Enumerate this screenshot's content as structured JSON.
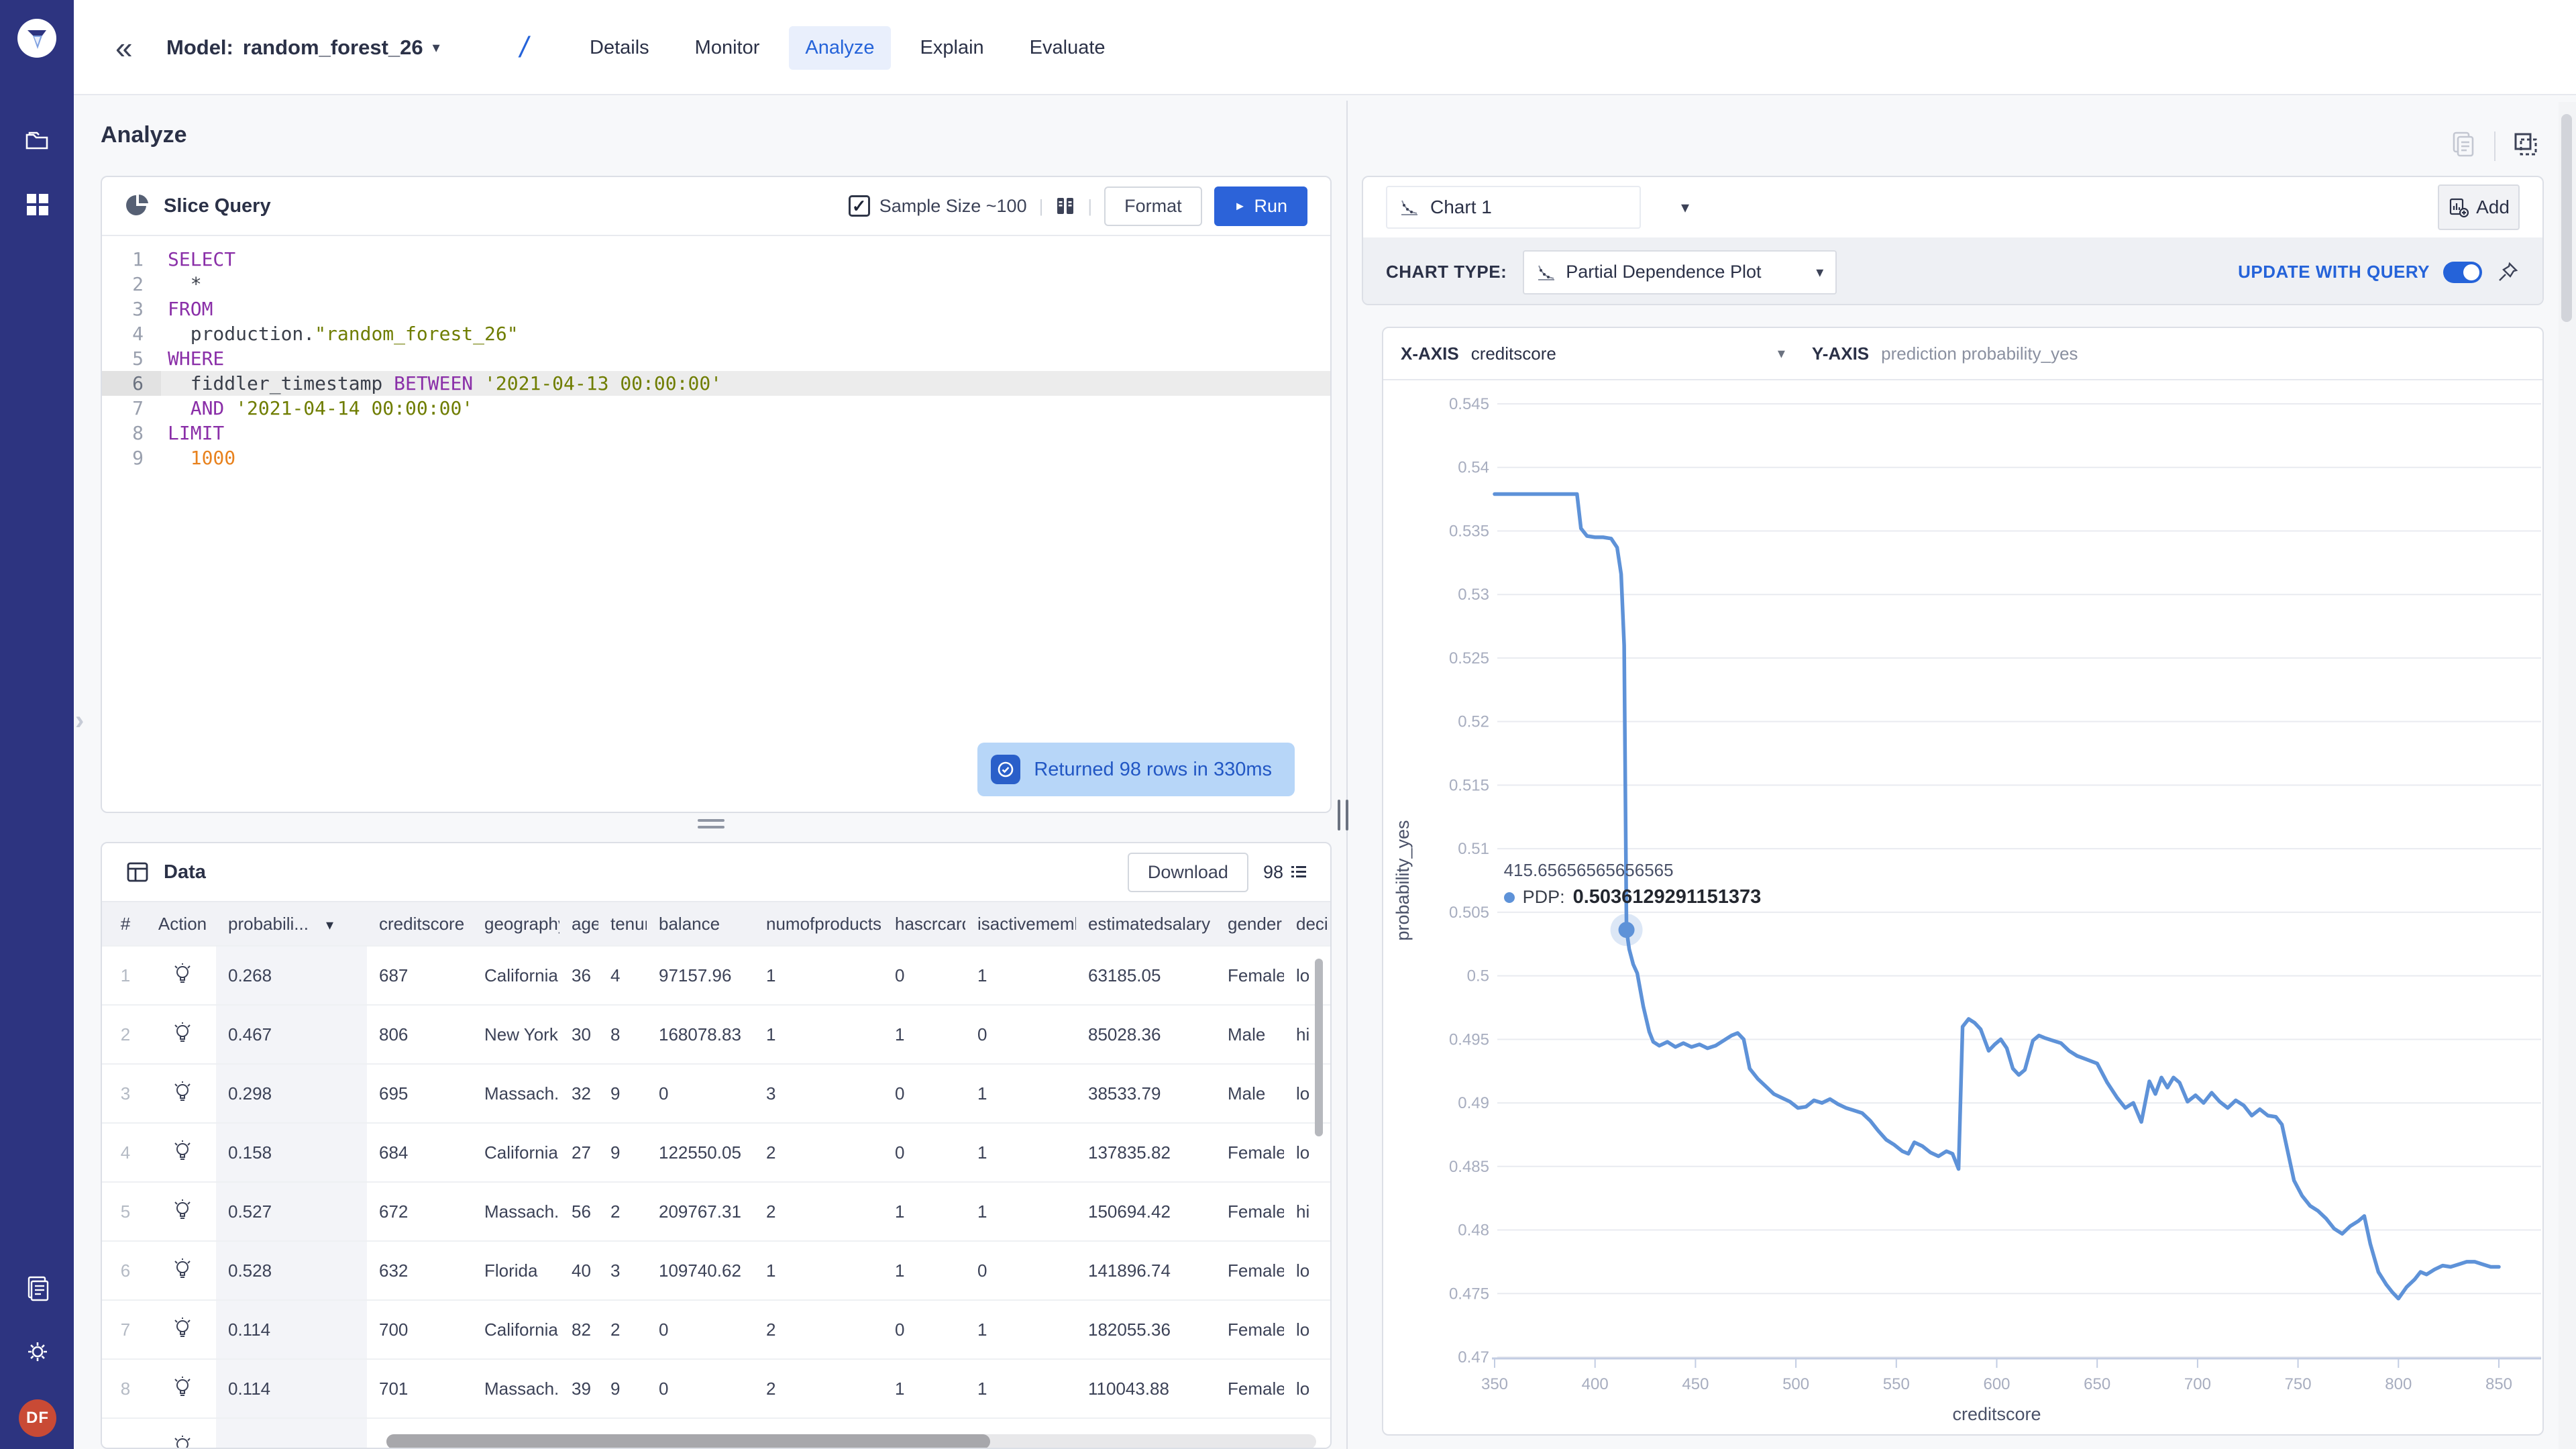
{
  "app": {
    "accent": "#2563d9",
    "sidebar_color": "#2d3480",
    "line_color": "#5e92d8",
    "toast_bg": "#b7d6f8"
  },
  "icons": {
    "chevron_down": "▾",
    "collapse": "«",
    "expander": "›",
    "check": "✓",
    "play": "►",
    "divider": "|"
  },
  "sidebar": {
    "logo": "fiddler-logo",
    "avatar_initials": "DF"
  },
  "topbar": {
    "model_label": "Model:",
    "model_name": "random_forest_26",
    "breadcrumb_slash": "/",
    "tabs": [
      {
        "label": "Details",
        "active": false
      },
      {
        "label": "Monitor",
        "active": false
      },
      {
        "label": "Analyze",
        "active": true
      },
      {
        "label": "Explain",
        "active": false
      },
      {
        "label": "Evaluate",
        "active": false
      }
    ]
  },
  "page": {
    "title": "Analyze"
  },
  "slice_query": {
    "title": "Slice Query",
    "sample_size_label": "Sample Size ~100",
    "format_label": "Format",
    "run_label": "Run",
    "code_lines": [
      {
        "active": false,
        "tokens": [
          [
            "kw",
            "SELECT"
          ]
        ]
      },
      {
        "active": false,
        "tokens": [
          [
            "pl",
            "  *"
          ]
        ]
      },
      {
        "active": false,
        "tokens": [
          [
            "kw",
            "FROM"
          ]
        ]
      },
      {
        "active": false,
        "tokens": [
          [
            "pl",
            "  production."
          ],
          [
            "str",
            "\"random_forest_26\""
          ]
        ]
      },
      {
        "active": false,
        "tokens": [
          [
            "kw",
            "WHERE"
          ]
        ]
      },
      {
        "active": true,
        "tokens": [
          [
            "pl",
            "  fiddler_timestamp "
          ],
          [
            "kw",
            "BETWEEN"
          ],
          [
            "pl",
            " "
          ],
          [
            "str",
            "'2021-04-13 00:00:00'"
          ]
        ]
      },
      {
        "active": false,
        "tokens": [
          [
            "pl",
            "  "
          ],
          [
            "kw",
            "AND"
          ],
          [
            "pl",
            " "
          ],
          [
            "str",
            "'2021-04-14 00:00:00'"
          ]
        ]
      },
      {
        "active": false,
        "tokens": [
          [
            "kw",
            "LIMIT"
          ]
        ]
      },
      {
        "active": false,
        "tokens": [
          [
            "num",
            "  1000"
          ]
        ]
      }
    ]
  },
  "toast": {
    "text": "Returned 98 rows in 330ms"
  },
  "data_panel": {
    "title": "Data",
    "download_label": "Download",
    "row_count": "98",
    "columns": [
      "#",
      "Action",
      "probabili...",
      "creditscore",
      "geography",
      "age",
      "tenure",
      "balance",
      "numofproducts",
      "hascrcard",
      "isactivemember",
      "estimatedsalary",
      "gender",
      "deci"
    ],
    "rows": [
      {
        "n": "1",
        "prob": "0.268",
        "creditscore": "687",
        "geography": "California",
        "age": "36",
        "tenure": "4",
        "balance": "97157.96",
        "numofproducts": "1",
        "hascrcard": "0",
        "isactivemember": "1",
        "estimatedsalary": "63185.05",
        "gender": "Female",
        "decision": "lo"
      },
      {
        "n": "2",
        "prob": "0.467",
        "creditscore": "806",
        "geography": "New York",
        "age": "30",
        "tenure": "8",
        "balance": "168078.83",
        "numofproducts": "1",
        "hascrcard": "1",
        "isactivemember": "0",
        "estimatedsalary": "85028.36",
        "gender": "Male",
        "decision": "hi"
      },
      {
        "n": "3",
        "prob": "0.298",
        "creditscore": "695",
        "geography": "Massach...",
        "age": "32",
        "tenure": "9",
        "balance": "0",
        "numofproducts": "3",
        "hascrcard": "0",
        "isactivemember": "1",
        "estimatedsalary": "38533.79",
        "gender": "Male",
        "decision": "lo"
      },
      {
        "n": "4",
        "prob": "0.158",
        "creditscore": "684",
        "geography": "California",
        "age": "27",
        "tenure": "9",
        "balance": "122550.05",
        "numofproducts": "2",
        "hascrcard": "0",
        "isactivemember": "1",
        "estimatedsalary": "137835.82",
        "gender": "Female",
        "decision": "lo"
      },
      {
        "n": "5",
        "prob": "0.527",
        "creditscore": "672",
        "geography": "Massach...",
        "age": "56",
        "tenure": "2",
        "balance": "209767.31",
        "numofproducts": "2",
        "hascrcard": "1",
        "isactivemember": "1",
        "estimatedsalary": "150694.42",
        "gender": "Female",
        "decision": "hi"
      },
      {
        "n": "6",
        "prob": "0.528",
        "creditscore": "632",
        "geography": "Florida",
        "age": "40",
        "tenure": "3",
        "balance": "109740.62",
        "numofproducts": "1",
        "hascrcard": "1",
        "isactivemember": "0",
        "estimatedsalary": "141896.74",
        "gender": "Female",
        "decision": "lo"
      },
      {
        "n": "7",
        "prob": "0.114",
        "creditscore": "700",
        "geography": "California",
        "age": "82",
        "tenure": "2",
        "balance": "0",
        "numofproducts": "2",
        "hascrcard": "0",
        "isactivemember": "1",
        "estimatedsalary": "182055.36",
        "gender": "Female",
        "decision": "lo"
      },
      {
        "n": "8",
        "prob": "0.114",
        "creditscore": "701",
        "geography": "Massach...",
        "age": "39",
        "tenure": "9",
        "balance": "0",
        "numofproducts": "2",
        "hascrcard": "1",
        "isactivemember": "1",
        "estimatedsalary": "110043.88",
        "gender": "Female",
        "decision": "lo"
      },
      {
        "n": "",
        "prob": "",
        "creditscore": "",
        "geography": "",
        "age": "",
        "tenure": "",
        "balance": "",
        "numofproducts": "",
        "hascrcard": "",
        "isactivemember": "",
        "estimatedsalary": "",
        "gender": "",
        "decision": ""
      }
    ]
  },
  "chart_panel": {
    "selector_label": "Chart 1",
    "add_label": "Add",
    "chart_type_label": "CHART TYPE:",
    "chart_type_value": "Partial Dependence Plot",
    "update_label": "UPDATE WITH QUERY",
    "x_axis_label": "X-AXIS",
    "x_axis_value": "creditscore",
    "y_axis_label": "Y-AXIS",
    "y_axis_value": "prediction probability_yes",
    "tooltip": {
      "x_value": "415.65656565656565",
      "series_label": "PDP:",
      "value": "0.5036129291151373"
    }
  },
  "chart_data": {
    "type": "line",
    "title": "Partial Dependence Plot",
    "xlabel": "creditscore",
    "ylabel": "probability_yes",
    "xlim": [
      350,
      850
    ],
    "ylim": [
      0.47,
      0.545
    ],
    "grid": true,
    "x_ticks": [
      "350",
      "400",
      "450",
      "500",
      "550",
      "600",
      "650",
      "700",
      "750",
      "800",
      "850"
    ],
    "y_ticks": [
      "0.545",
      "0.54",
      "0.535",
      "0.53",
      "0.525",
      "0.52",
      "0.515",
      "0.51",
      "0.505",
      "0.5",
      "0.495",
      "0.49",
      "0.485",
      "0.48",
      "0.475",
      "0.47"
    ],
    "marker": {
      "x": 415.65656565656565,
      "y": 0.5036129291151373
    },
    "series": [
      {
        "name": "PDP",
        "color": "#5e92d8",
        "points": [
          [
            350,
            0.5379
          ],
          [
            356,
            0.5379
          ],
          [
            362,
            0.5379
          ],
          [
            368,
            0.5379
          ],
          [
            374,
            0.5379
          ],
          [
            380,
            0.5379
          ],
          [
            386,
            0.5379
          ],
          [
            391,
            0.5379
          ],
          [
            393,
            0.5352
          ],
          [
            396,
            0.5346
          ],
          [
            400,
            0.5345
          ],
          [
            404,
            0.5345
          ],
          [
            408,
            0.5344
          ],
          [
            411,
            0.5337
          ],
          [
            413,
            0.5316
          ],
          [
            414.5,
            0.526
          ],
          [
            415.65656565656565,
            0.5036129291151373
          ],
          [
            417,
            0.5021
          ],
          [
            419,
            0.5009
          ],
          [
            421,
            0.5002
          ],
          [
            424,
            0.4976
          ],
          [
            427,
            0.4956
          ],
          [
            429,
            0.4948
          ],
          [
            432,
            0.4945
          ],
          [
            436,
            0.4948
          ],
          [
            440,
            0.4944
          ],
          [
            444,
            0.4947
          ],
          [
            448,
            0.4944
          ],
          [
            452,
            0.4946
          ],
          [
            456,
            0.4943
          ],
          [
            460,
            0.4945
          ],
          [
            464,
            0.4949
          ],
          [
            468,
            0.4953
          ],
          [
            471,
            0.4955
          ],
          [
            474,
            0.495
          ],
          [
            477,
            0.4927
          ],
          [
            481,
            0.4919
          ],
          [
            485,
            0.4913
          ],
          [
            489,
            0.4907
          ],
          [
            493,
            0.4904
          ],
          [
            497,
            0.4901
          ],
          [
            501,
            0.4896
          ],
          [
            505,
            0.4897
          ],
          [
            509,
            0.4902
          ],
          [
            513,
            0.49
          ],
          [
            517,
            0.4903
          ],
          [
            521,
            0.4899
          ],
          [
            525,
            0.4896
          ],
          [
            529,
            0.4894
          ],
          [
            533,
            0.4892
          ],
          [
            537,
            0.4886
          ],
          [
            541,
            0.4878
          ],
          [
            545,
            0.4871
          ],
          [
            549,
            0.4867
          ],
          [
            553,
            0.4862
          ],
          [
            556,
            0.486
          ],
          [
            559,
            0.4869
          ],
          [
            563,
            0.4866
          ],
          [
            567,
            0.4861
          ],
          [
            571,
            0.4858
          ],
          [
            575,
            0.4862
          ],
          [
            578,
            0.486
          ],
          [
            581,
            0.4848
          ],
          [
            583,
            0.496
          ],
          [
            586,
            0.4966
          ],
          [
            589,
            0.4963
          ],
          [
            592,
            0.4958
          ],
          [
            596,
            0.4941
          ],
          [
            599,
            0.4946
          ],
          [
            602,
            0.495
          ],
          [
            605,
            0.4943
          ],
          [
            608,
            0.4927
          ],
          [
            611,
            0.4922
          ],
          [
            614,
            0.4926
          ],
          [
            618,
            0.4949
          ],
          [
            621,
            0.4953
          ],
          [
            624,
            0.4951
          ],
          [
            628,
            0.4949
          ],
          [
            632,
            0.4947
          ],
          [
            636,
            0.4941
          ],
          [
            640,
            0.4937
          ],
          [
            645,
            0.4934
          ],
          [
            650,
            0.4931
          ],
          [
            655,
            0.4916
          ],
          [
            660,
            0.4904
          ],
          [
            664,
            0.4896
          ],
          [
            668,
            0.49
          ],
          [
            672,
            0.4885
          ],
          [
            676,
            0.4917
          ],
          [
            679,
            0.4907
          ],
          [
            682,
            0.492
          ],
          [
            685,
            0.4912
          ],
          [
            688,
            0.492
          ],
          [
            691,
            0.4916
          ],
          [
            695,
            0.4901
          ],
          [
            699,
            0.4906
          ],
          [
            703,
            0.49
          ],
          [
            707,
            0.4908
          ],
          [
            711,
            0.4901
          ],
          [
            715,
            0.4896
          ],
          [
            719,
            0.4902
          ],
          [
            723,
            0.4898
          ],
          [
            727,
            0.489
          ],
          [
            731,
            0.4895
          ],
          [
            735,
            0.489
          ],
          [
            739,
            0.4889
          ],
          [
            742,
            0.4883
          ],
          [
            745,
            0.4861
          ],
          [
            748,
            0.4839
          ],
          [
            752,
            0.4827
          ],
          [
            756,
            0.4819
          ],
          [
            760,
            0.4815
          ],
          [
            764,
            0.4809
          ],
          [
            768,
            0.4801
          ],
          [
            772,
            0.4797
          ],
          [
            776,
            0.4803
          ],
          [
            780,
            0.4807
          ],
          [
            783,
            0.4811
          ],
          [
            786,
            0.4789
          ],
          [
            790,
            0.4767
          ],
          [
            794,
            0.4757
          ],
          [
            797,
            0.4751
          ],
          [
            800,
            0.4746
          ],
          [
            804,
            0.4755
          ],
          [
            808,
            0.4761
          ],
          [
            811,
            0.4767
          ],
          [
            814,
            0.4765
          ],
          [
            818,
            0.4769
          ],
          [
            822,
            0.4772
          ],
          [
            826,
            0.4771
          ],
          [
            830,
            0.4773
          ],
          [
            834,
            0.4775
          ],
          [
            838,
            0.4775
          ],
          [
            842,
            0.4773
          ],
          [
            846,
            0.4771
          ],
          [
            850,
            0.4771
          ]
        ]
      }
    ]
  }
}
